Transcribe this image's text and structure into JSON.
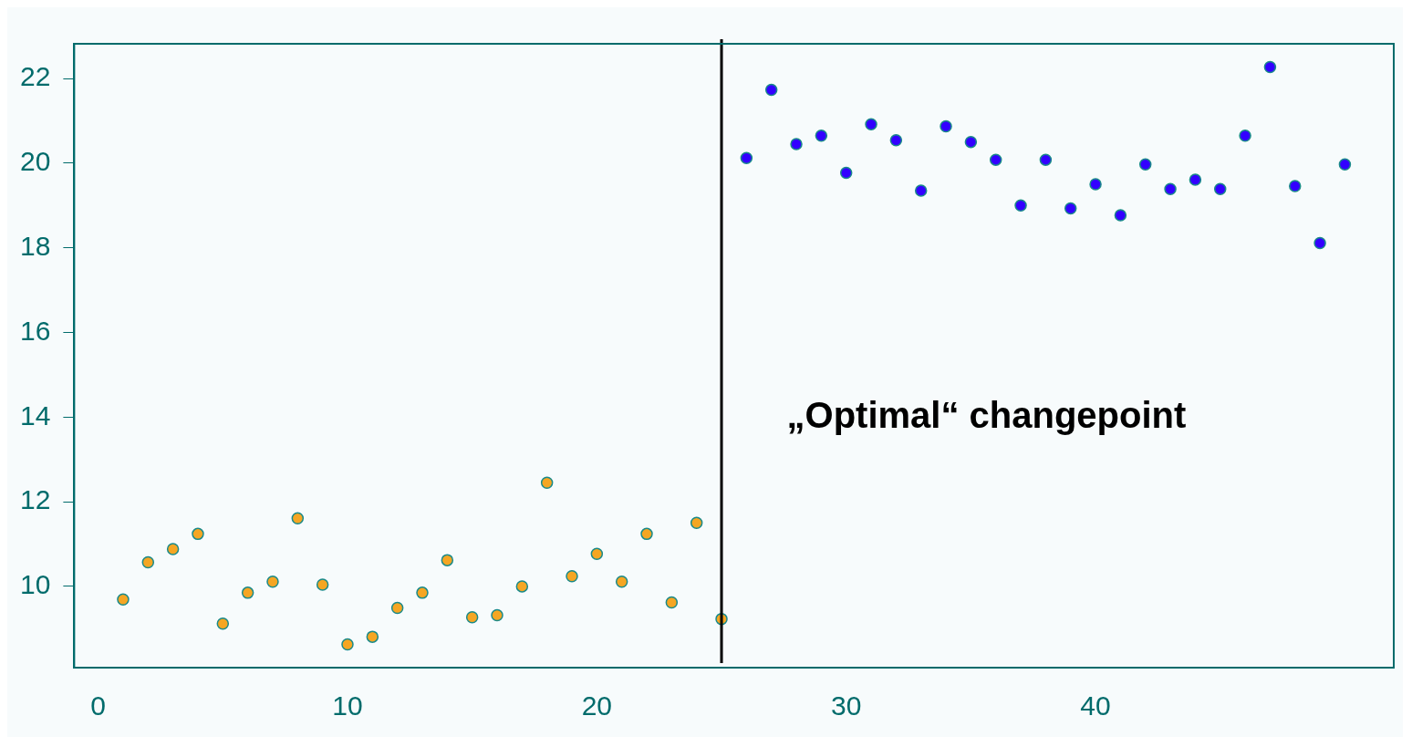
{
  "chart_data": {
    "type": "scatter",
    "marker": "circle",
    "grid": false,
    "legend": false,
    "xlim": [
      -0.96,
      51.96
    ],
    "ylim": [
      8.08,
      22.82
    ],
    "xticks": [
      0,
      10,
      20,
      30,
      40
    ],
    "yticks": [
      10,
      12,
      14,
      16,
      18,
      20,
      22
    ],
    "series": [
      {
        "color": "#f5a623",
        "x": [
          1,
          2,
          3,
          4,
          5,
          6,
          7,
          8,
          9,
          10,
          11,
          12,
          13,
          14,
          15,
          16,
          17,
          18,
          19,
          20,
          21,
          22,
          23,
          24,
          25
        ],
        "values": [
          9.69,
          10.57,
          10.88,
          11.24,
          9.12,
          9.85,
          10.11,
          11.61,
          10.04,
          8.63,
          8.81,
          9.49,
          9.85,
          10.62,
          9.27,
          9.32,
          10.0,
          12.45,
          10.24,
          10.77,
          10.11,
          11.24,
          9.62,
          11.5,
          9.23
        ]
      },
      {
        "color": "#3300ff",
        "x": [
          26,
          27,
          28,
          29,
          30,
          31,
          32,
          33,
          34,
          35,
          36,
          37,
          38,
          39,
          40,
          41,
          42,
          43,
          44,
          45,
          46,
          47,
          48,
          49,
          50
        ],
        "values": [
          20.12,
          21.73,
          20.45,
          20.65,
          19.77,
          20.92,
          20.54,
          19.35,
          20.87,
          20.5,
          20.08,
          19.0,
          20.08,
          18.93,
          19.5,
          18.77,
          19.97,
          19.39,
          19.61,
          19.39,
          20.65,
          22.27,
          19.46,
          18.11,
          19.97
        ]
      }
    ],
    "ref_lines": [
      {
        "axis": "x",
        "value": 25,
        "color": "#000000"
      }
    ],
    "annotations": [
      "„Optimal“ changepoint"
    ]
  }
}
